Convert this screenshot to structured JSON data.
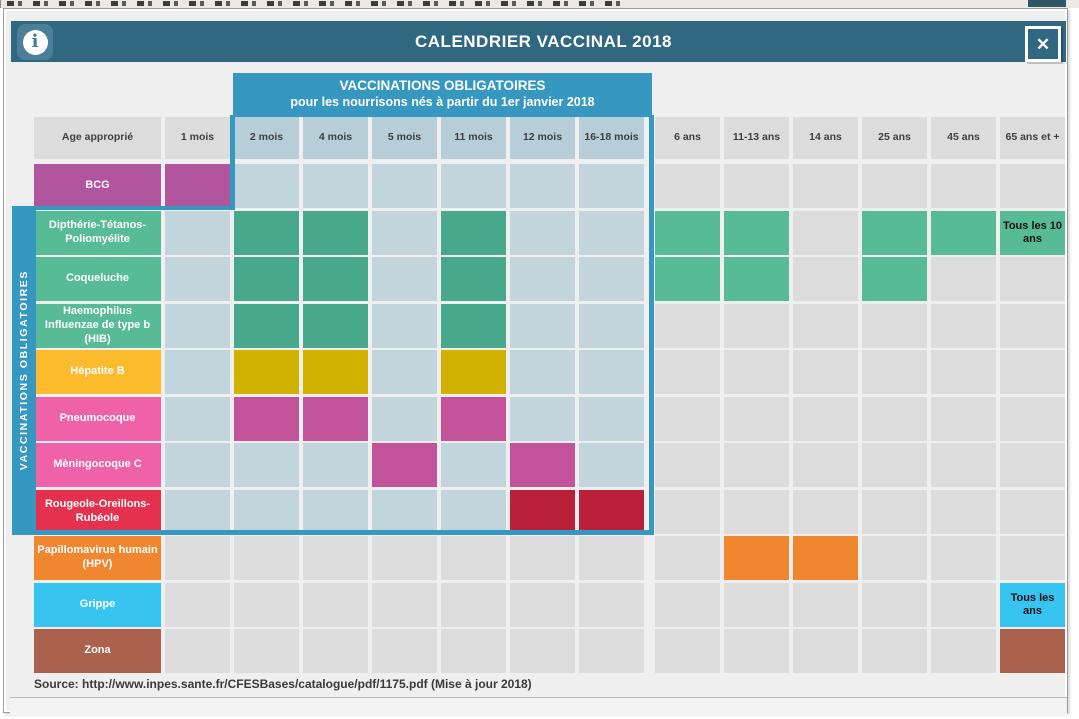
{
  "chrome": {
    "title": "CALENDRIER VACCINAL 2018",
    "info_label": "i",
    "close_label": "✕"
  },
  "obligatory_box": {
    "title": "VACCINATIONS OBLIGATOIRES",
    "subtitle": "pour les nourrisons nés à partir du 1er janvier 2018"
  },
  "side_banner": "VACCINATIONS OBLIGATOIRES",
  "age_columns": [
    {
      "label": "Age approprié",
      "region": false
    },
    {
      "label": "1 mois",
      "region": false
    },
    {
      "label": "2 mois",
      "region": true
    },
    {
      "label": "4 mois",
      "region": true
    },
    {
      "label": "5 mois",
      "region": true
    },
    {
      "label": "11 mois",
      "region": true
    },
    {
      "label": "12 mois",
      "region": true
    },
    {
      "label": "16-18 mois",
      "region": true
    },
    {
      "label": "6 ans",
      "region": false
    },
    {
      "label": "11-13 ans",
      "region": false
    },
    {
      "label": "14 ans",
      "region": false
    },
    {
      "label": "25 ans",
      "region": false
    },
    {
      "label": "45 ans",
      "region": false
    },
    {
      "label": "65 ans et +",
      "region": false
    }
  ],
  "rows": [
    {
      "label": "BCG",
      "color": "bcg",
      "cells": [
        "bcg",
        "region",
        "region",
        "region",
        "region",
        "region",
        "region",
        "",
        "",
        "",
        "",
        "",
        ""
      ]
    },
    {
      "label": "Dipthérie-Tétanos-Poliomyélite",
      "color": "green",
      "cells": [
        "region",
        "greendark",
        "greendark",
        "region",
        "greendark",
        "region",
        "region",
        "green",
        "green",
        "",
        "green",
        "green",
        {
          "c": "green",
          "t": "Tous les 10 ans"
        }
      ]
    },
    {
      "label": "Coqueluche",
      "color": "green",
      "cells": [
        "region",
        "greendark",
        "greendark",
        "region",
        "greendark",
        "region",
        "region",
        "green",
        "green",
        "",
        "green",
        "",
        ""
      ]
    },
    {
      "label": "Haemophilus Influenzae de type b (HIB)",
      "color": "green",
      "cells": [
        "region",
        "greendark",
        "greendark",
        "region",
        "greendark",
        "region",
        "region",
        "",
        "",
        "",
        "",
        "",
        ""
      ]
    },
    {
      "label": "Hépatite B",
      "color": "yellow",
      "cells": [
        "region",
        "gold",
        "gold",
        "region",
        "gold",
        "region",
        "region",
        "",
        "",
        "",
        "",
        "",
        ""
      ]
    },
    {
      "label": "Pneumocoque",
      "color": "pink",
      "cells": [
        "region",
        "magenta",
        "magenta",
        "region",
        "magenta",
        "region",
        "region",
        "",
        "",
        "",
        "",
        "",
        ""
      ]
    },
    {
      "label": "Mèningocoque C",
      "color": "pink",
      "cells": [
        "region",
        "region",
        "region",
        "magenta",
        "region",
        "magenta",
        "region",
        "",
        "",
        "",
        "",
        "",
        ""
      ]
    },
    {
      "label": "Rougeole-Oreillons-Rubéole",
      "color": "red",
      "cells": [
        "region",
        "region",
        "region",
        "region",
        "region",
        "reddark",
        "reddark",
        "",
        "",
        "",
        "",
        "",
        ""
      ]
    },
    {
      "label": "Papillomavirus humain (HPV)",
      "color": "orange",
      "cells": [
        "",
        "",
        "",
        "",
        "",
        "",
        "",
        "",
        "orange",
        "orange",
        "",
        "",
        ""
      ]
    },
    {
      "label": "Grippe",
      "color": "cyan",
      "cells": [
        "",
        "",
        "",
        "",
        "",
        "",
        "",
        "",
        "",
        "",
        "",
        "",
        {
          "c": "cyan",
          "t": "Tous les ans"
        }
      ]
    },
    {
      "label": "Zona",
      "color": "brown",
      "cells": [
        "",
        "",
        "",
        "",
        "",
        "",
        "",
        "",
        "",
        "",
        "",
        "",
        "brown"
      ]
    }
  ],
  "footer": {
    "source": "Source: http://www.inpes.sante.fr/CFESBases/catalogue/pdf/1175.pdf (Mise à jour 2018)"
  },
  "palette": {
    "titlebar": "#2f6880",
    "info_btn": "#4b7e98",
    "blue": "#3697c0",
    "col_gray": "#dcdcdc",
    "col_region": "#b7ced8",
    "cell_gray": "#dcdcdc",
    "cell_region": "#c2d5dd",
    "bcg": "#b0559e",
    "green": "#57bb98",
    "greendark": "#47a88c",
    "yellow": "#fcbb2d",
    "gold": "#d2b201",
    "pink": "#ef61a8",
    "magenta": "#c2539b",
    "red": "#e5304e",
    "reddark": "#bb203a",
    "orange": "#f0862e",
    "cyan": "#38c4f0",
    "brown": "#aa614d"
  }
}
